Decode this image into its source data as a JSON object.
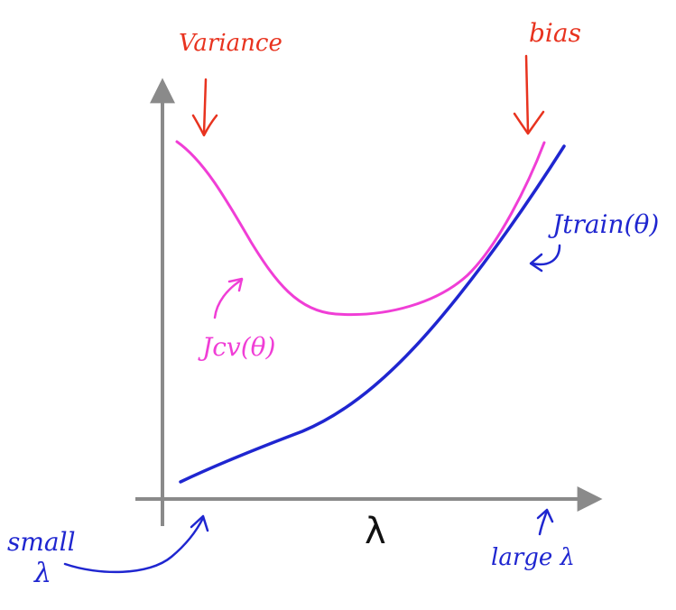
{
  "labels": {
    "variance": "Variance",
    "bias": "bias",
    "jcv": "Jcv(θ)",
    "jtrain": "Jtrain(θ)",
    "lambda_axis": "λ",
    "small": "small",
    "small_lambda": "λ",
    "large_lambda": "large λ"
  },
  "colors": {
    "axis": "#8a8a8a",
    "red": "#e8331f",
    "magenta": "#f03ed6",
    "blue": "#1f26d0"
  }
}
